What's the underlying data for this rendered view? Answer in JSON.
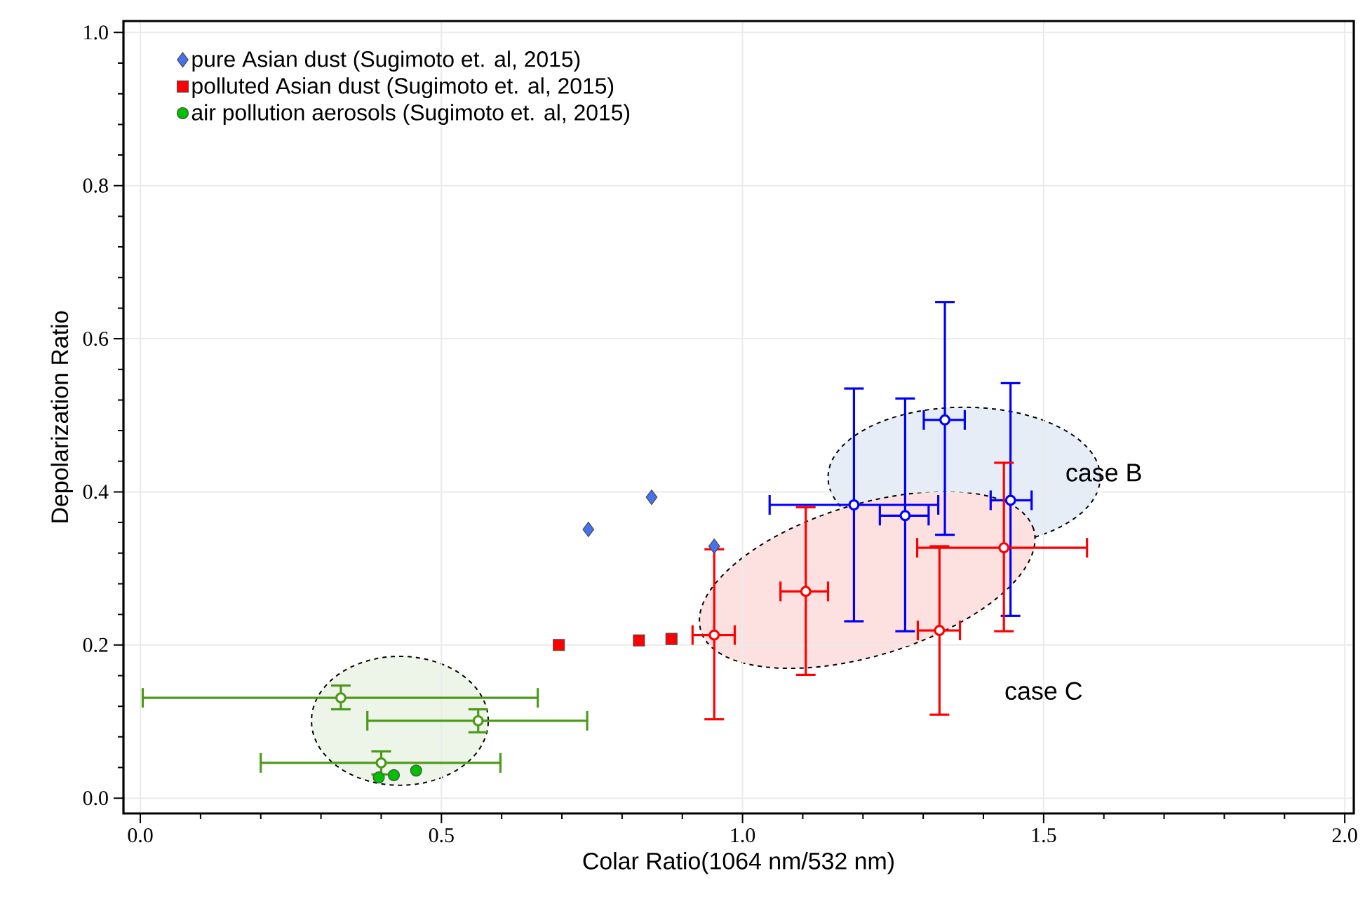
{
  "chart_data": {
    "type": "scatter",
    "xlabel": "Colar Ratio(1064 nm/532 nm)",
    "ylabel": "Depolarization Ratio",
    "xlim": [
      -0.028,
      2.015
    ],
    "ylim": [
      -0.02,
      1.015
    ],
    "xticks": [
      {
        "value": 0,
        "label": "0.0"
      },
      {
        "value": 0.5,
        "label": "0.5"
      },
      {
        "value": 1,
        "label": "1.0"
      },
      {
        "value": 1.5,
        "label": "1.5"
      },
      {
        "value": 2,
        "label": "2.0"
      }
    ],
    "yticks": [
      {
        "value": 0,
        "label": "0.0"
      },
      {
        "value": 0.2,
        "label": "0.2"
      },
      {
        "value": 0.4,
        "label": "0.4"
      },
      {
        "value": 0.6,
        "label": "0.6"
      },
      {
        "value": 0.8,
        "label": "0.8"
      },
      {
        "value": 1,
        "label": "1.0"
      }
    ],
    "grid": true,
    "legend": "top left",
    "annotations": [
      "case  B",
      "case  C"
    ],
    "series": [
      {
        "name": "pure Asian dust (Sugimoto et. al, 2015)",
        "color": "#4472f0",
        "marker": "diamond",
        "x": [
          0.744,
          0.849,
          0.953
        ],
        "values": [
          0.351,
          0.393,
          0.329
        ]
      },
      {
        "name": "polluted Asian dust (Sugimoto et. al, 2015)",
        "color": "#ff0000",
        "marker": "square",
        "x": [
          0.695,
          0.828,
          0.882
        ],
        "values": [
          0.2,
          0.206,
          0.208
        ]
      },
      {
        "name": "air pollution aerosols (Sugimoto et. al, 2015)",
        "color": "#00c000",
        "marker": "circle",
        "x": [
          0.396,
          0.421,
          0.458
        ],
        "values": [
          0.027,
          0.03,
          0.036
        ]
      },
      {
        "color": "#0000ff",
        "marker": "circle",
        "x": [
          1.185,
          1.27,
          1.336,
          1.445
        ],
        "values": [
          0.383,
          0.369,
          0.494,
          0.389
        ],
        "errors": [
          [
            0.231,
            0.535
          ],
          [
            0.218,
            0.522
          ],
          [
            0.344,
            0.648
          ],
          [
            0.238,
            0.542
          ]
        ],
        "xerrors": [
          [
            1.045,
            1.325
          ],
          [
            1.228,
            1.309
          ],
          [
            1.301,
            1.369
          ],
          [
            1.412,
            1.48
          ]
        ]
      },
      {
        "color": "#ff0000",
        "marker": "circle",
        "x": [
          0.953,
          1.105,
          1.327,
          1.434
        ],
        "values": [
          0.213,
          0.27,
          0.219,
          0.327
        ],
        "errors": [
          [
            0.103,
            0.325
          ],
          [
            0.161,
            0.38
          ],
          [
            0.109,
            0.329
          ],
          [
            0.218,
            0.438
          ]
        ],
        "xerrors": [
          [
            0.917,
            0.987
          ],
          [
            1.063,
            1.142
          ],
          [
            1.291,
            1.361
          ],
          [
            1.29,
            1.572
          ]
        ]
      },
      {
        "color": "#4d9a1a",
        "marker": "circle",
        "x": [
          0.333,
          0.561,
          0.4
        ],
        "values": [
          0.131,
          0.101,
          0.046
        ],
        "errors": [
          [
            0.116,
            0.147
          ],
          [
            0.086,
            0.116
          ],
          [
            0.031,
            0.061
          ]
        ],
        "xerrors": [
          [
            0.004,
            0.66
          ],
          [
            0.377,
            0.742
          ],
          [
            0.2,
            0.598
          ]
        ]
      }
    ]
  }
}
